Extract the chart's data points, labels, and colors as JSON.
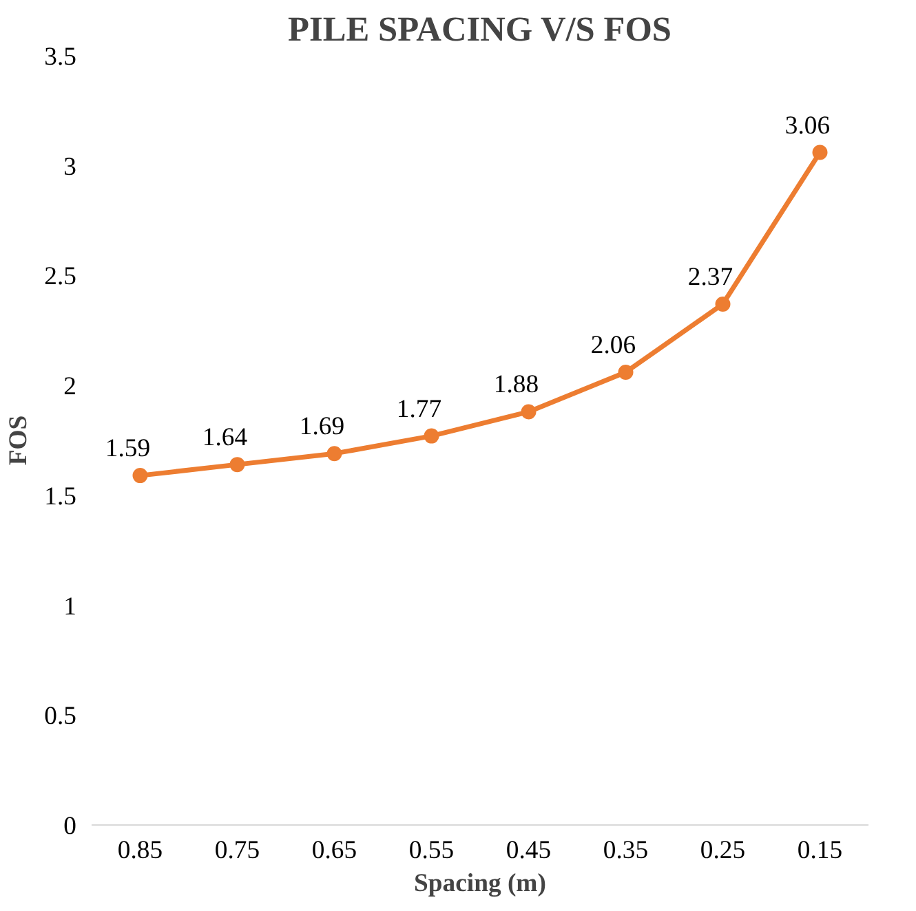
{
  "chart_data": {
    "type": "line",
    "title": "PILE SPACING V/S FOS",
    "xlabel": "Spacing (m)",
    "ylabel": "FOS",
    "categories": [
      "0.85",
      "0.75",
      "0.65",
      "0.55",
      "0.45",
      "0.35",
      "0.25",
      "0.15"
    ],
    "series": [
      {
        "color": "#ed7d31",
        "values": [
          1.59,
          1.64,
          1.69,
          1.77,
          1.88,
          2.06,
          2.37,
          3.06
        ]
      }
    ],
    "ylim": [
      0,
      3.5
    ],
    "yticks": [
      0,
      0.5,
      1,
      1.5,
      2,
      2.5,
      3,
      3.5
    ],
    "grid": false,
    "marker": "circle",
    "line_style": "solid",
    "data_labels": true
  }
}
